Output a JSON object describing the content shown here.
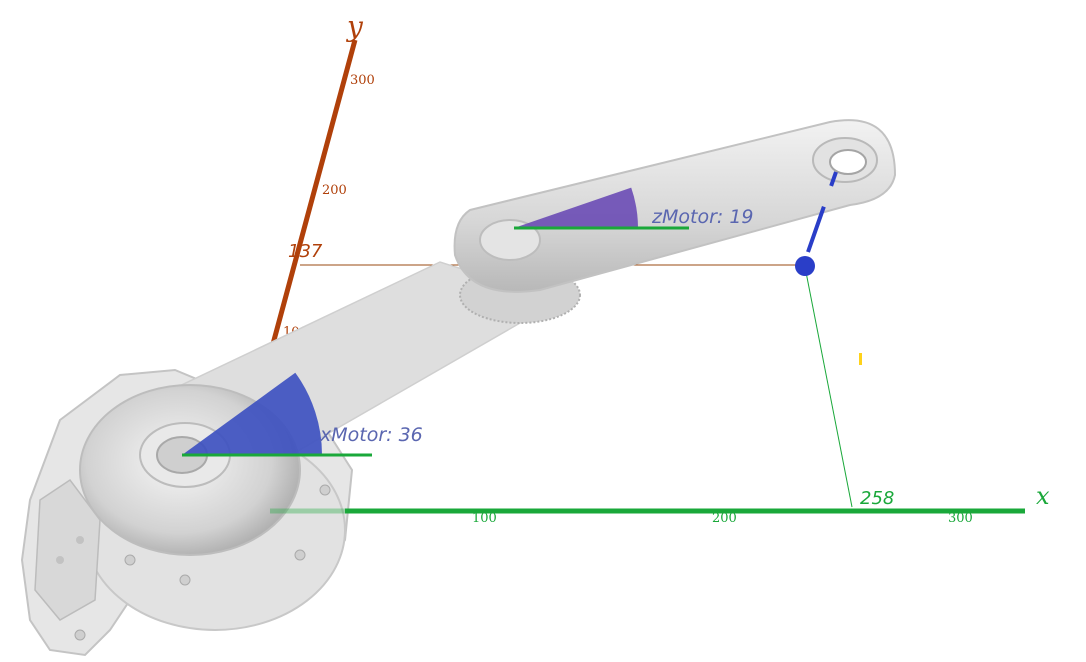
{
  "axes": {
    "x": {
      "label": "x",
      "color": "#1aa83a",
      "ticks": [
        "100",
        "200",
        "300"
      ]
    },
    "y": {
      "label": "y",
      "color": "#b0400a",
      "ticks": [
        "100",
        "200",
        "300"
      ]
    }
  },
  "end_effector": {
    "x_readout": "258",
    "y_readout": "137",
    "point_color": "#2a3ec8",
    "guide_x_color": "#1aa83a",
    "guide_y_color": "#9a4a10"
  },
  "motors": [
    {
      "label": "xMotor: 36",
      "angle_deg": 36,
      "sector_color": "#3b4fc0",
      "ref_color": "#1aa83a"
    },
    {
      "label": "zMotor: 19",
      "angle_deg": 19,
      "sector_color": "#6a4bb5",
      "ref_color": "#1aa83a"
    }
  ],
  "arm": {
    "part_color": "#dcdcdc"
  }
}
